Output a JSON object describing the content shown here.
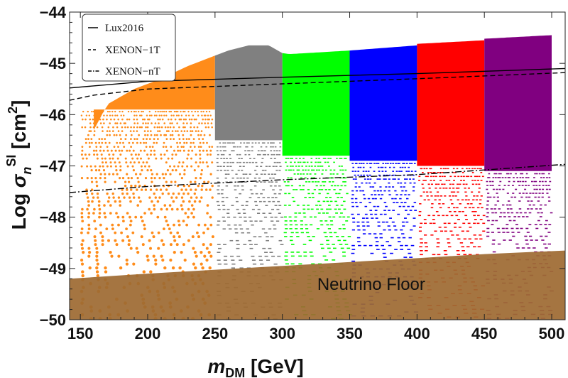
{
  "chart_data": {
    "type": "scatter",
    "title": "",
    "xlabel": {
      "main": "m",
      "sub": "DM",
      "unit": " [GeV]"
    },
    "ylabel": {
      "pre": "Log ",
      "main": "σ",
      "sub": "n",
      "sup": "SI",
      "unit_pre": "  [cm",
      "unit_sup": "2",
      "unit_post": "]"
    },
    "xlim": [
      142,
      510
    ],
    "ylim": [
      -50,
      -44
    ],
    "x_ticks": [
      150,
      200,
      250,
      300,
      350,
      400,
      450,
      500
    ],
    "y_ticks": [
      -50,
      -49,
      -48,
      -47,
      -46,
      -45,
      -44
    ],
    "x_tick_labels": [
      "150",
      "200",
      "250",
      "300",
      "350",
      "400",
      "450",
      "500"
    ],
    "y_tick_labels": [
      "−50",
      "−49",
      "−48",
      "−47",
      "−46",
      "−45",
      "−44"
    ],
    "regions": [
      {
        "x_range": [
          150,
          250
        ],
        "color": "#ff8c1a",
        "top": [
          [
            160,
            -46.3
          ],
          [
            170,
            -45.8
          ],
          [
            190,
            -45.5
          ],
          [
            210,
            -45.3
          ],
          [
            230,
            -45.05
          ],
          [
            250,
            -44.85
          ]
        ],
        "dense_bottom": -45.9
      },
      {
        "x_range": [
          250,
          300
        ],
        "color": "#808080",
        "top": [
          [
            250,
            -44.85
          ],
          [
            260,
            -44.75
          ],
          [
            275,
            -44.65
          ],
          [
            290,
            -44.65
          ],
          [
            300,
            -44.8
          ]
        ],
        "dense_bottom": -46.5
      },
      {
        "x_range": [
          300,
          350
        ],
        "color": "#00ff00",
        "top": [
          [
            300,
            -44.8
          ],
          [
            305,
            -44.82
          ],
          [
            350,
            -44.75
          ]
        ],
        "dense_bottom": -46.8
      },
      {
        "x_range": [
          350,
          400
        ],
        "color": "#0000ff",
        "top": [
          [
            350,
            -44.75
          ],
          [
            400,
            -44.65
          ]
        ],
        "dense_bottom": -46.9
      },
      {
        "x_range": [
          400,
          450
        ],
        "color": "#ff0000",
        "top": [
          [
            400,
            -44.62
          ],
          [
            450,
            -44.55
          ]
        ],
        "dense_bottom": -47.0
      },
      {
        "x_range": [
          450,
          500
        ],
        "color": "#800080",
        "top": [
          [
            450,
            -44.52
          ],
          [
            500,
            -44.45
          ]
        ],
        "dense_bottom": -47.1
      }
    ],
    "neutrino_floor": {
      "label": "Neutrino Floor",
      "color": "#9e6a33",
      "boundary": [
        [
          142,
          -49.2
        ],
        [
          200,
          -49.1
        ],
        [
          300,
          -48.95
        ],
        [
          400,
          -48.8
        ],
        [
          450,
          -48.72
        ],
        [
          510,
          -48.65
        ]
      ]
    },
    "series": [
      {
        "name": "Lux2016",
        "style": "solid",
        "points": [
          [
            142,
            -45.48
          ],
          [
            200,
            -45.35
          ],
          [
            300,
            -45.27
          ],
          [
            400,
            -45.2
          ],
          [
            510,
            -45.1
          ]
        ]
      },
      {
        "name": "XENON−1T",
        "style": "dashed",
        "points": [
          [
            142,
            -45.72
          ],
          [
            160,
            -45.62
          ],
          [
            200,
            -45.5
          ],
          [
            300,
            -45.4
          ],
          [
            400,
            -45.3
          ],
          [
            510,
            -45.18
          ]
        ]
      },
      {
        "name": "XENON−nT",
        "style": "dashdot",
        "points": [
          [
            142,
            -47.52
          ],
          [
            200,
            -47.4
          ],
          [
            300,
            -47.27
          ],
          [
            400,
            -47.17
          ],
          [
            510,
            -46.97
          ]
        ]
      }
    ],
    "legend": {
      "placement": "top-left"
    }
  }
}
